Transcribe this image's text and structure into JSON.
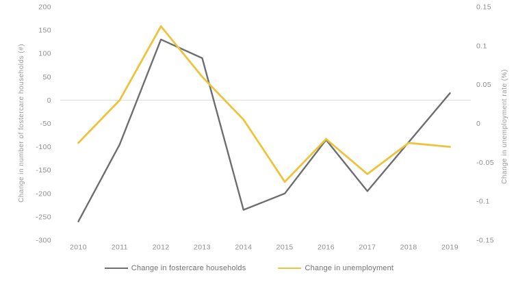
{
  "chart_data": {
    "type": "line",
    "x_categories": [
      "2010",
      "2011",
      "2012",
      "2013",
      "2014",
      "2015",
      "2016",
      "2017",
      "2018",
      "2019"
    ],
    "series": [
      {
        "name": "Change in fostercare households",
        "axis": "left",
        "color": "#6d6e71",
        "stroke_width": 2.4,
        "values": [
          -260,
          -95,
          130,
          90,
          -235,
          -200,
          -85,
          -195,
          -90,
          15
        ]
      },
      {
        "name": "Change in unemployment",
        "axis": "right",
        "color": "#edc33c",
        "stroke_width": 2.8,
        "values": [
          -0.025,
          0.03,
          0.125,
          0.06,
          0.005,
          -0.075,
          -0.02,
          -0.065,
          -0.025,
          -0.03
        ]
      }
    ],
    "left_axis": {
      "label": "Change in number of fostercare households (#)",
      "min": -300,
      "max": 200,
      "tick_labels": [
        "200",
        "150",
        "100",
        "50",
        "0",
        "-50",
        "-100",
        "-150",
        "-200",
        "-250",
        "-300"
      ]
    },
    "right_axis": {
      "label": "Change in unemployment rate (%)",
      "min": -0.15,
      "max": 0.15,
      "tick_labels": [
        "0.15",
        "0.1",
        "0.05",
        "0",
        "-0.05",
        "-0.1",
        "-0.15"
      ]
    },
    "gridline": {
      "axis": "left",
      "value": 0,
      "color": "#d9d9d9"
    },
    "grid": "single-horizontal-line-at-zero",
    "legend_position": "bottom",
    "colors": {
      "background": "#ffffff",
      "tick_text": "#8b8d90",
      "axis_title_text": "#97999c",
      "legend_text": "#707275"
    }
  }
}
